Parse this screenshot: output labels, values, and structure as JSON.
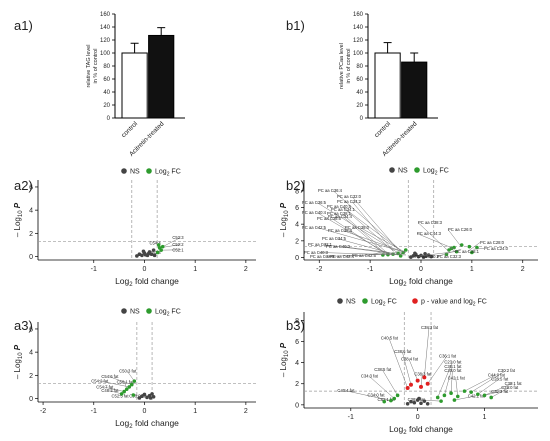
{
  "panels": {
    "a1": "a1)",
    "b1": "b1)",
    "a2": "a2)",
    "b2": "b2)",
    "a3": "a3)",
    "b3": "b3)"
  },
  "legend": {
    "ns": "NS",
    "fc_prefix": "Log",
    "fc_sub": "2",
    "fc_suffix": " FC",
    "p_and_fc": "p - value and log",
    "p_and_fc_sub": "2",
    "p_and_fc_suffix": " FC"
  },
  "colors": {
    "ns": "#444444",
    "fc": "#2e9b2e",
    "sig": "#e02020",
    "control": "#ffffff",
    "treated": "#111111",
    "guide": "#9a9a9a"
  },
  "volcano_axes": {
    "ylabel_pre": "– Log",
    "ylabel_sub": "10",
    "ylabel_var": "P",
    "xlabel_pre": "Log",
    "xlabel_sub": "2",
    "xlabel_post": " fold change"
  },
  "chart_data": [
    {
      "id": "a1",
      "type": "bar",
      "categories": [
        "control",
        "Acitretin-treated"
      ],
      "values": [
        100,
        127
      ],
      "errors": [
        15,
        12
      ],
      "ylabel": "relative TAG level in % of control",
      "ylim": [
        0,
        160
      ],
      "yticks": [
        0,
        20,
        40,
        60,
        80,
        100,
        120,
        140,
        160
      ]
    },
    {
      "id": "b1",
      "type": "bar",
      "categories": [
        "control",
        "Acitretin-treated"
      ],
      "values": [
        100,
        86
      ],
      "errors": [
        16,
        14
      ],
      "ylabel": "relative PCaa level in % of control",
      "ylim": [
        0,
        160
      ],
      "yticks": [
        0,
        20,
        40,
        60,
        80,
        100,
        120,
        140,
        160
      ]
    },
    {
      "id": "a2",
      "type": "scatter",
      "xlim": [
        -2.1,
        2.2
      ],
      "ylim": [
        -0.3,
        6.6
      ],
      "xticks": [
        -1,
        0,
        1,
        2
      ],
      "yticks": [
        0,
        2,
        4,
        6
      ],
      "guides": {
        "x": [
          -0.25,
          0.25
        ],
        "y": [
          1.3
        ]
      },
      "ns_points": [
        [
          -0.15,
          0.05
        ],
        [
          -0.1,
          0.2
        ],
        [
          -0.05,
          0.1
        ],
        [
          0.0,
          0.3
        ],
        [
          0.02,
          0.15
        ],
        [
          0.06,
          0.1
        ],
        [
          0.1,
          0.4
        ],
        [
          0.14,
          0.2
        ],
        [
          0.18,
          0.55
        ],
        [
          0.2,
          0.1
        ],
        [
          -0.02,
          0.45
        ],
        [
          0.08,
          0.25
        ]
      ],
      "fc_points": [
        [
          0.28,
          1.0
        ],
        [
          0.3,
          0.75
        ],
        [
          0.33,
          0.55
        ],
        [
          0.26,
          0.35
        ],
        [
          0.36,
          0.85
        ]
      ],
      "labels": [
        {
          "text": "C52:3",
          "x": 0.55,
          "y": 1.5,
          "px": 0.36,
          "py": 0.85
        },
        {
          "text": "C54:4",
          "x": 0.1,
          "y": 1.05,
          "px": 0.28,
          "py": 1.0
        },
        {
          "text": "C52:2",
          "x": 0.55,
          "y": 0.9,
          "px": 0.3,
          "py": 0.75
        },
        {
          "text": "C52:1",
          "x": 0.55,
          "y": 0.45,
          "px": 0.33,
          "py": 0.55
        },
        {
          "text": "C52:4",
          "x": 0.1,
          "y": 0.2,
          "px": 0.26,
          "py": 0.35
        }
      ]
    },
    {
      "id": "b2",
      "type": "scatter",
      "xlim": [
        -2.3,
        2.3
      ],
      "ylim": [
        -0.3,
        9.3
      ],
      "xticks": [
        -2,
        -1,
        0,
        1,
        2
      ],
      "yticks": [
        0,
        2,
        4,
        6,
        8
      ],
      "guides": {
        "x": [
          -0.25,
          0.25
        ],
        "y": [
          1.3
        ]
      },
      "ns_points": [
        [
          -0.2,
          0.05
        ],
        [
          -0.15,
          0.2
        ],
        [
          -0.1,
          0.35
        ],
        [
          -0.05,
          0.1
        ],
        [
          0.0,
          0.25
        ],
        [
          0.05,
          0.05
        ],
        [
          0.1,
          0.15
        ],
        [
          0.15,
          0.3
        ],
        [
          0.2,
          0.1
        ],
        [
          -0.12,
          0.5
        ],
        [
          0.08,
          0.45
        ]
      ],
      "fc_points": [
        [
          -0.35,
          0.6
        ],
        [
          -0.45,
          0.5
        ],
        [
          -0.55,
          0.4
        ],
        [
          -0.65,
          0.35
        ],
        [
          -0.75,
          0.3
        ],
        [
          -0.3,
          0.9
        ],
        [
          -0.4,
          0.2
        ],
        [
          0.55,
          0.9
        ],
        [
          0.6,
          1.1
        ],
        [
          0.65,
          1.2
        ],
        [
          0.7,
          0.7
        ],
        [
          0.8,
          1.5
        ],
        [
          0.95,
          1.3
        ],
        [
          1.1,
          1.2
        ],
        [
          0.5,
          0.4
        ],
        [
          1.0,
          0.6
        ]
      ],
      "labels_left": [
        "PC aa C36:4",
        "PC aa C32:0",
        "PC aa C36:5",
        "PC aa C40:5",
        "PC aa C40:4",
        "PC aa C38:6",
        "PC aa C42:5",
        "PC aa C34:1",
        "PC aa C34:5",
        "PC aa C32:1",
        "PC aa C40:0",
        "PC aa C42:6",
        "PC aa C40:3",
        "PC aa C32:0b",
        "PC aa C42:4",
        "PC aa C34:2",
        "PC aa C38:1",
        "PC aa C34:4",
        "PC aa C38:0",
        "PC aa C36:3"
      ],
      "labels_right": [
        "PC aa C38:3",
        "PC aa C44:3",
        "PC aa C26:0",
        "PC aa C28:0",
        "PC aa C24:0",
        "PC aa C28:1",
        "PC aa C30:2",
        "PC aa C32:3"
      ]
    },
    {
      "id": "a3",
      "type": "scatter",
      "xlim": [
        -2.1,
        2.2
      ],
      "ylim": [
        -0.3,
        6.6
      ],
      "xticks": [
        -2,
        -1,
        0,
        1,
        2
      ],
      "yticks": [
        0,
        2,
        4,
        6
      ],
      "guides": {
        "x": [
          -0.15,
          0.15
        ],
        "y": [
          1.3
        ]
      },
      "ns_points": [
        [
          -0.1,
          0.05
        ],
        [
          -0.05,
          0.2
        ],
        [
          0.0,
          0.35
        ],
        [
          0.05,
          0.1
        ],
        [
          0.1,
          0.25
        ],
        [
          0.12,
          0.05
        ],
        [
          0.15,
          0.4
        ],
        [
          0.18,
          0.15
        ]
      ],
      "fc_points": [
        [
          -0.2,
          1.5
        ],
        [
          -0.25,
          1.2
        ],
        [
          -0.3,
          1.0
        ],
        [
          -0.35,
          0.8
        ],
        [
          -0.4,
          0.6
        ],
        [
          -0.45,
          0.4
        ],
        [
          -0.22,
          0.3
        ]
      ],
      "labels": [
        {
          "text": "C50:3 fat",
          "x": -0.5,
          "y": 2.25,
          "px": -0.2,
          "py": 1.5
        },
        {
          "text": "C54:6 fat",
          "x": -0.85,
          "y": 1.75,
          "px": -0.25,
          "py": 1.2
        },
        {
          "text": "C54:2 fat",
          "x": -1.05,
          "y": 1.4,
          "px": -0.3,
          "py": 1.0
        },
        {
          "text": "C50:1 fat",
          "x": -0.55,
          "y": 1.3,
          "px": -0.35,
          "py": 0.8
        },
        {
          "text": "C54:7 fat",
          "x": -0.95,
          "y": 0.85,
          "px": -0.4,
          "py": 0.6
        },
        {
          "text": "C48:3 fat",
          "x": -0.85,
          "y": 0.55,
          "px": -0.45,
          "py": 0.4
        },
        {
          "text": "C52:5 fat",
          "x": -0.65,
          "y": 0.1,
          "px": -0.45,
          "py": 0.4
        },
        {
          "text": "C50:0 fat",
          "x": -0.3,
          "y": 0.1,
          "px": -0.22,
          "py": 0.3
        }
      ]
    },
    {
      "id": "b3",
      "type": "scatter",
      "xlim": [
        -1.7,
        1.8
      ],
      "ylim": [
        -0.3,
        8.8
      ],
      "xticks": [
        -1,
        0,
        1
      ],
      "yticks": [
        0,
        2,
        4,
        6,
        8
      ],
      "guides": {
        "x": [
          -0.2,
          0.2
        ],
        "y": [
          1.3
        ]
      },
      "ns_points": [
        [
          -0.15,
          0.1
        ],
        [
          -0.1,
          0.3
        ],
        [
          -0.05,
          0.2
        ],
        [
          0.0,
          0.45
        ],
        [
          0.05,
          0.15
        ],
        [
          0.1,
          0.35
        ],
        [
          0.15,
          0.1
        ],
        [
          0.02,
          0.6
        ]
      ],
      "fc_points": [
        [
          -0.3,
          0.9
        ],
        [
          -0.35,
          0.6
        ],
        [
          -0.4,
          0.4
        ],
        [
          -0.5,
          0.3
        ],
        [
          0.3,
          0.7
        ],
        [
          0.4,
          0.9
        ],
        [
          0.5,
          1.1
        ],
        [
          0.6,
          0.8
        ],
        [
          0.7,
          1.3
        ],
        [
          0.8,
          1.2
        ],
        [
          0.9,
          1.0
        ],
        [
          1.0,
          0.9
        ],
        [
          1.1,
          0.7
        ],
        [
          0.35,
          0.35
        ],
        [
          0.55,
          0.45
        ]
      ],
      "sig_points": [
        [
          -0.15,
          1.6
        ],
        [
          -0.1,
          1.9
        ],
        [
          0.0,
          2.3
        ],
        [
          0.1,
          2.6
        ],
        [
          0.15,
          2.0
        ],
        [
          0.05,
          1.7
        ]
      ],
      "labels": [
        {
          "text": "C38:3 fat",
          "x": 0.05,
          "y": 7.2,
          "px": 0.1,
          "py": 2.6
        },
        {
          "text": "C40:5 fat",
          "x": -0.55,
          "y": 6.2,
          "px": -0.15,
          "py": 1.6
        },
        {
          "text": "C38:6 fat",
          "x": -0.35,
          "y": 4.9,
          "px": -0.1,
          "py": 1.9
        },
        {
          "text": "C38:4 fat",
          "x": -0.25,
          "y": 4.2,
          "px": 0.0,
          "py": 2.3
        },
        {
          "text": "C36:1 fat",
          "x": 0.32,
          "y": 4.5,
          "px": 0.15,
          "py": 2.0
        },
        {
          "text": "C23:0 fat",
          "x": 0.4,
          "y": 3.9,
          "px": 0.3,
          "py": 0.7
        },
        {
          "text": "C30:1 fat",
          "x": 0.4,
          "y": 3.5,
          "px": 0.4,
          "py": 0.9
        },
        {
          "text": "C38:5 fat",
          "x": -0.65,
          "y": 3.2,
          "px": -0.3,
          "py": 0.9
        },
        {
          "text": "C30:0 fat",
          "x": 0.4,
          "y": 3.1,
          "px": 0.5,
          "py": 1.1
        },
        {
          "text": "C38:3 fat",
          "x": -0.05,
          "y": 2.8,
          "px": 0.05,
          "py": 1.7
        },
        {
          "text": "C34:3 fat",
          "x": -0.85,
          "y": 2.6,
          "px": -0.35,
          "py": 0.6
        },
        {
          "text": "C42:1 fat",
          "x": 0.45,
          "y": 2.4,
          "px": 0.6,
          "py": 0.8
        },
        {
          "text": "C40:4 fat",
          "x": -1.2,
          "y": 1.2,
          "px": -0.4,
          "py": 0.4
        },
        {
          "text": "C34:0 fat",
          "x": -0.75,
          "y": 0.8,
          "px": -0.5,
          "py": 0.3
        },
        {
          "text": "C32:1 fat",
          "x": -0.6,
          "y": 0.35,
          "px": -0.4,
          "py": 0.4
        },
        {
          "text": "C38:1 fat",
          "x": -0.15,
          "y": 0.35,
          "px": 0.35,
          "py": 0.35
        },
        {
          "text": "C30:2 fat",
          "x": 1.2,
          "y": 3.1,
          "px": 0.8,
          "py": 1.2
        },
        {
          "text": "C44:0 fat",
          "x": 1.05,
          "y": 2.7,
          "px": 0.7,
          "py": 1.3
        },
        {
          "text": "C28:5 fat",
          "x": 1.1,
          "y": 2.3,
          "px": 0.9,
          "py": 1.0
        },
        {
          "text": "C30:1 fat",
          "x": 1.3,
          "y": 1.9,
          "px": 1.0,
          "py": 0.9
        },
        {
          "text": "C28:0 fat",
          "x": 1.25,
          "y": 1.5,
          "px": 1.1,
          "py": 0.7
        },
        {
          "text": "C32:3 fat",
          "x": 1.1,
          "y": 1.1,
          "px": 1.0,
          "py": 0.9
        },
        {
          "text": "C42:2 fat",
          "x": 0.75,
          "y": 0.7,
          "px": 0.55,
          "py": 0.45
        }
      ]
    }
  ]
}
